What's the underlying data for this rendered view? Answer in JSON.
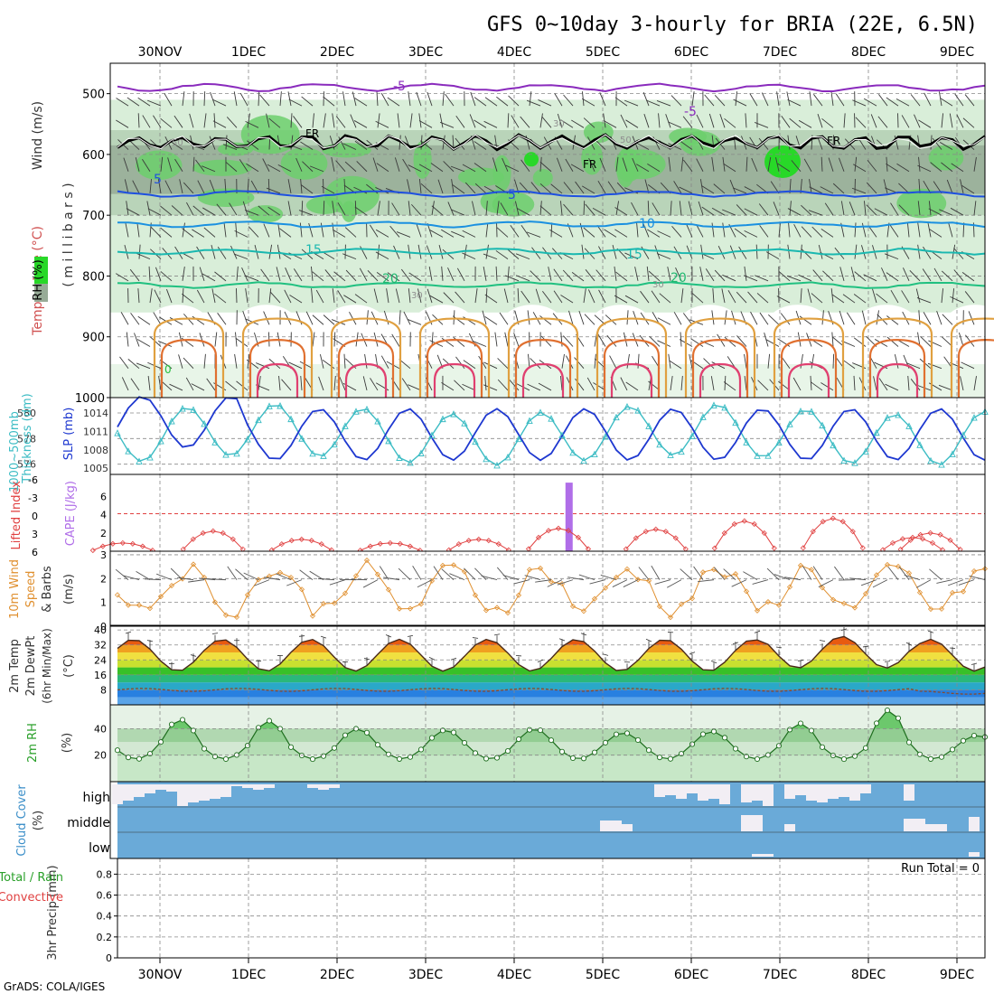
{
  "title": "GFS 0~10day 3-hourly for BRIA (22E, 6.5N)",
  "footer": "GrADS: COLA/IGES",
  "colors": {
    "rh_light": "#d9eed9",
    "rh_mid": "#b9d4b9",
    "rh_dark": "#97ab97",
    "rh_green": "#6ccf6c",
    "rh_bright": "#28d828",
    "thickness": "#3cbcc4",
    "slp": "#1e38d0",
    "cape": "#b06ee8",
    "lifted": "#e04040",
    "wind": "#e09030",
    "barb": "#555555",
    "cloud": "#6aaad8",
    "cloud_fill": "#f2eef4",
    "dewpt": "#8a4a2a",
    "rh2m": "#2aa02a"
  },
  "dates": [
    "30NOV",
    "1DEC",
    "2DEC",
    "3DEC",
    "4DEC",
    "5DEC",
    "6DEC",
    "7DEC",
    "8DEC",
    "9DEC"
  ],
  "labels": {
    "p1_wind": "Wind (m/s)",
    "p1_temp": "Temperature (°C)",
    "p1_rh": "RH (%)",
    "p1_units": "( m i l l i b a r s )",
    "p2_thick": "Thickness (dm)",
    "p2_thick2": "1000~500mb",
    "p2_slp": "SLP (mb)",
    "p3_li": "Lifted Index",
    "p3_cape": "CAPE (J/kg)",
    "p4_a": "10m Wind",
    "p4_b": "Speed",
    "p4_c": "& Barbs",
    "p4_d": "(m/s)",
    "p5_a": "2m Temp",
    "p5_b": "2m DewPt",
    "p5_c": "(6hr Min/Max)",
    "p5_d": "(°C)",
    "p6_a": "2m RH",
    "p6_b": "(%)",
    "p7_a": "Cloud Cover",
    "p7_b": "(%)",
    "p8_a": "3hr Precip (mm)",
    "p8_b": "Total / Rain",
    "p8_c": "Convective",
    "run_total": "Run Total = 0"
  },
  "contour_labels": {
    "fr1": "FR",
    "fr2": "FR",
    "fr3": "FR",
    "m5a": "-5",
    "m5b": "-5",
    "p5a": "5",
    "p5b": "5",
    "p10": "10",
    "p15a": "15",
    "p15b": "15",
    "p20a": "20",
    "p20b": "20",
    "z0": "0",
    "r30a": "30",
    "r30b": "30",
    "r30c": "30",
    "r50a": "50",
    "r50b": "50"
  },
  "chart_data": [
    {
      "type": "contour",
      "panel": "upper-air cross section",
      "ylabel": "(millibars)",
      "yticks": [
        "500",
        "600",
        "700",
        "800",
        "900",
        "1000"
      ],
      "ylim": [
        1000,
        450
      ],
      "isotherm_levels": [
        -5,
        5,
        10,
        15,
        20
      ],
      "freezing_level_mb": 575
    },
    {
      "type": "line",
      "panel": "thickness and slp",
      "left_ticks": [
        "580",
        "578",
        "576"
      ],
      "right_ticks": [
        "1014",
        "1011",
        "1008",
        "1005"
      ],
      "series": [
        {
          "name": "Thickness 1000~500mb (dm)",
          "range": [
            575.8,
            580.8
          ]
        },
        {
          "name": "SLP (mb)",
          "range": [
            1005,
            1016
          ]
        }
      ]
    },
    {
      "type": "line",
      "panel": "lifted index and cape",
      "li_ticks": [
        "-6",
        "-3",
        "0",
        "3",
        "6"
      ],
      "cape_ticks": [
        "6",
        "4",
        "2"
      ],
      "cape_bar": {
        "date_index": 4.62,
        "value": 7.5
      }
    },
    {
      "type": "line",
      "panel": "10m wind",
      "yticks": [
        "3",
        "2",
        "1",
        "0"
      ],
      "ylim": [
        0,
        3.1
      ]
    },
    {
      "type": "area",
      "panel": "2m temp",
      "yticks": [
        "40",
        "32",
        "24",
        "16",
        "8"
      ],
      "ylim": [
        0,
        42
      ],
      "temp_range": [
        19,
        37
      ],
      "dewpt_approx": 8
    },
    {
      "type": "area",
      "panel": "2m rh",
      "yticks": [
        "40",
        "20"
      ],
      "ylim": [
        0,
        58
      ]
    },
    {
      "type": "bar",
      "panel": "cloud cover",
      "levels": [
        "high",
        "middle",
        "low"
      ]
    },
    {
      "type": "bar",
      "panel": "3hr precip",
      "yticks": [
        "0.8",
        "0.6",
        "0.4",
        "0.2",
        "0"
      ],
      "ylim": [
        0,
        0.95
      ],
      "run_total": 0
    }
  ]
}
